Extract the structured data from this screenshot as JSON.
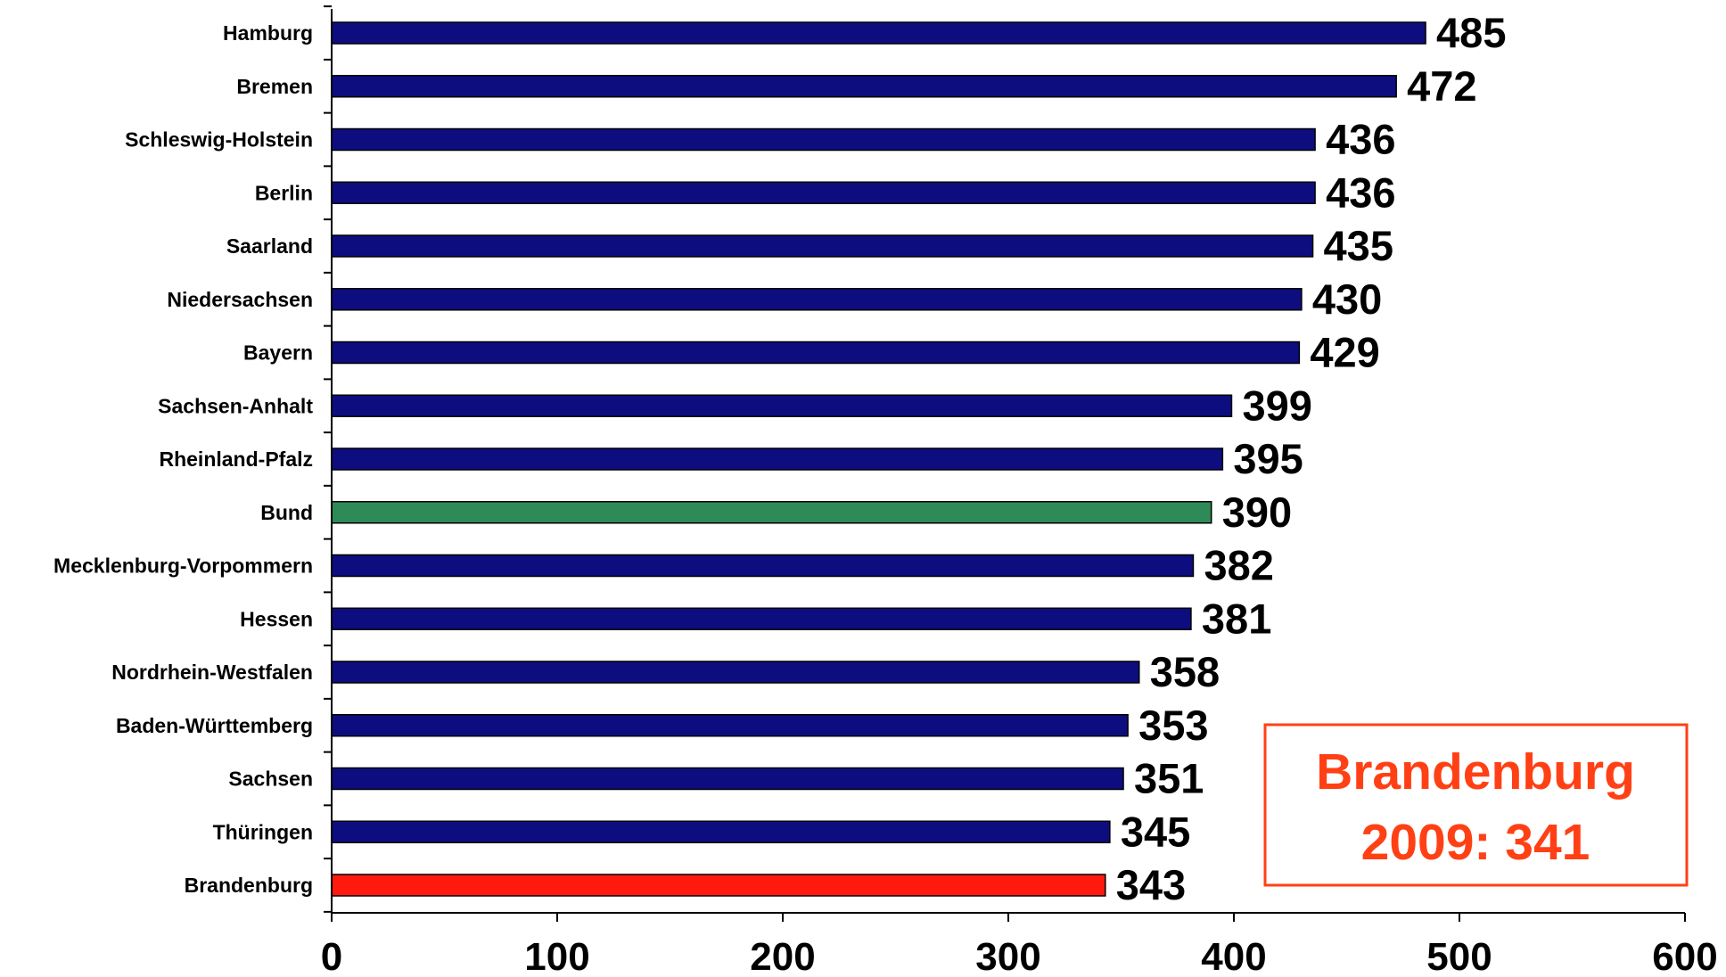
{
  "chart_data": {
    "type": "bar",
    "orientation": "horizontal",
    "categories": [
      "Hamburg",
      "Bremen",
      "Schleswig-Holstein",
      "Berlin",
      "Saarland",
      "Niedersachsen",
      "Bayern",
      "Sachsen-Anhalt",
      "Rheinland-Pfalz",
      "Bund",
      "Mecklenburg-Vorpommern",
      "Hessen",
      "Nordrhein-Westfalen",
      "Baden-Württemberg",
      "Sachsen",
      "Thüringen",
      "Brandenburg"
    ],
    "values": [
      485,
      472,
      436,
      436,
      435,
      430,
      429,
      399,
      395,
      390,
      382,
      381,
      358,
      353,
      351,
      345,
      343
    ],
    "xlim": [
      0,
      600
    ],
    "xticks": [
      0,
      100,
      200,
      300,
      400,
      500,
      600
    ],
    "grid": false,
    "legend": "none",
    "colors": {
      "default": "#0d0d80",
      "Bund": "#2e8b57",
      "Brandenburg": "#ff1a0d"
    },
    "annotation": {
      "line1": "Brandenburg",
      "line2": "2009: 341",
      "color": "#ff4015"
    }
  }
}
